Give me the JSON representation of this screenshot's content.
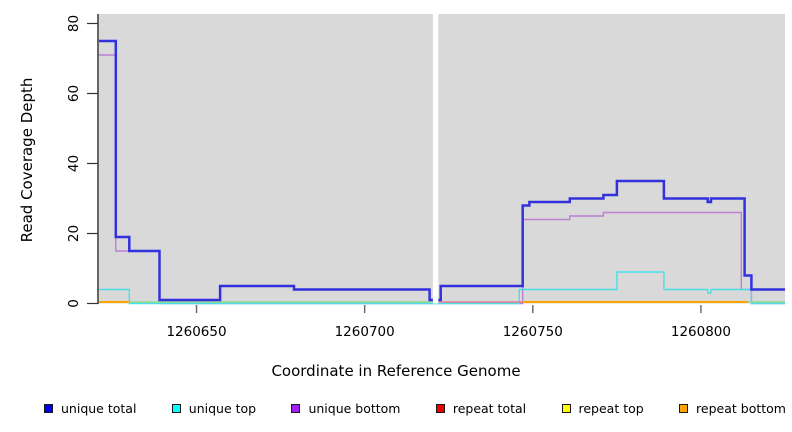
{
  "figure": {
    "x_axis_label": "Coordinate in Reference Genome",
    "y_axis_label": "Read Coverage Depth"
  },
  "legend": {
    "items": [
      {
        "label": "unique total",
        "color": "#0000ee"
      },
      {
        "label": "unique top",
        "color": "#00ffff"
      },
      {
        "label": "unique bottom",
        "color": "#a020f0"
      },
      {
        "label": "repeat total",
        "color": "#ee0000"
      },
      {
        "label": "repeat top",
        "color": "#ffff00"
      },
      {
        "label": "repeat bottom",
        "color": "#ffa500"
      }
    ]
  },
  "chart_data": {
    "type": "line",
    "subtype": "step-after",
    "title": "",
    "xlabel": "Coordinate in Reference Genome",
    "ylabel": "Read Coverage Depth",
    "xlim": [
      1260621,
      1260825
    ],
    "ylim": [
      0,
      80
    ],
    "x_ticks": [
      1260650,
      1260700,
      1260750,
      1260800
    ],
    "y_ticks": [
      0,
      20,
      40,
      60,
      80
    ],
    "grid": false,
    "plot_background": "#d9d9d9",
    "gap_band": {
      "x0": 1260720.3,
      "x1": 1260721.9,
      "color": "#ffffff"
    },
    "series": [
      {
        "name": "unique bottom",
        "line_color": "#bd7fd4",
        "line_width": 1.4,
        "points": [
          [
            1260621,
            71
          ],
          [
            1260626,
            15
          ],
          [
            1260639,
            0
          ],
          [
            1260747,
            24
          ],
          [
            1260761,
            25
          ],
          [
            1260771,
            26
          ],
          [
            1260812,
            4
          ],
          [
            1260815,
            0
          ],
          [
            1260825,
            0
          ]
        ]
      },
      {
        "name": "unique top",
        "line_color": "#49dfe8",
        "line_width": 1.4,
        "points": [
          [
            1260621,
            4
          ],
          [
            1260630,
            0
          ],
          [
            1260746,
            4
          ],
          [
            1260775,
            9
          ],
          [
            1260789,
            4
          ],
          [
            1260802,
            3
          ],
          [
            1260803,
            4
          ],
          [
            1260815,
            0
          ],
          [
            1260825,
            0
          ]
        ]
      },
      {
        "name": "unique total",
        "line_color": "#3331dd",
        "line_width": 2.5,
        "points": [
          [
            1260621,
            75
          ],
          [
            1260626,
            19
          ],
          [
            1260630,
            15
          ],
          [
            1260639,
            1
          ],
          [
            1260657,
            5
          ],
          [
            1260679,
            4
          ],
          [
            1260719.3,
            1
          ],
          [
            1260722.6,
            5
          ],
          [
            1260747,
            28
          ],
          [
            1260749,
            29
          ],
          [
            1260761,
            30
          ],
          [
            1260771,
            31
          ],
          [
            1260775,
            35
          ],
          [
            1260789,
            30
          ],
          [
            1260802,
            29
          ],
          [
            1260803,
            30
          ],
          [
            1260813,
            8
          ],
          [
            1260815,
            4
          ],
          [
            1260825,
            4
          ]
        ]
      }
    ],
    "baseline_zero_segments": [
      {
        "appearance": "repeat bottom (orange)",
        "color": "#ffa500",
        "x0": 1260621,
        "x1": 1260630,
        "width": 2.0
      },
      {
        "appearance": "blended top lines (light green)",
        "color": "#8fd98f",
        "x0": 1260630,
        "x1": 1260720.3,
        "width": 1.4
      },
      {
        "appearance": "repeat total (pink-red)",
        "color": "#e2808e",
        "x0": 1260721.9,
        "x1": 1260747,
        "width": 1.4
      },
      {
        "appearance": "repeat bottom (orange)",
        "color": "#ffa500",
        "x0": 1260747,
        "x1": 1260814,
        "width": 2.0
      },
      {
        "appearance": "blended top lines (light green)",
        "color": "#8fd98f",
        "x0": 1260814,
        "x1": 1260825,
        "width": 1.4
      }
    ]
  }
}
